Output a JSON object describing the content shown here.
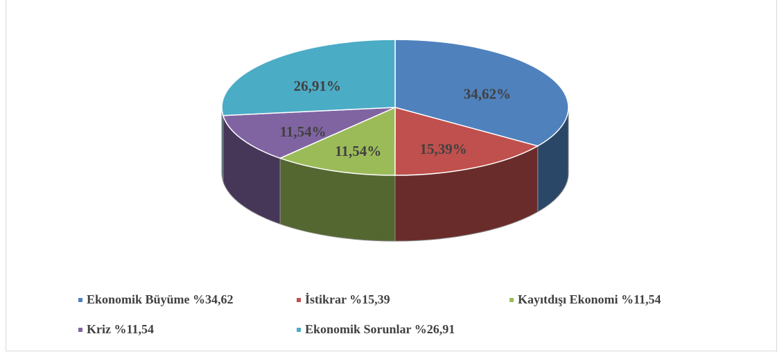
{
  "chart_data": {
    "type": "pie3d",
    "categories": [
      "Ekonomik Büyüme %34,62",
      "İstikrar %15,39",
      "Kayıtdışı Ekonomi %11,54",
      "Kriz %11,54",
      "Ekonomik Sorunlar %26,91"
    ],
    "values": [
      34.62,
      15.39,
      11.54,
      11.54,
      26.91
    ],
    "value_labels": [
      "34,62%",
      "15,39%",
      "11,54%",
      "11,54%",
      "26,91%"
    ],
    "colors": [
      "#4f81bd",
      "#c0504d",
      "#9bbb59",
      "#8064a2",
      "#4bacc6"
    ],
    "legend": "bottom"
  }
}
